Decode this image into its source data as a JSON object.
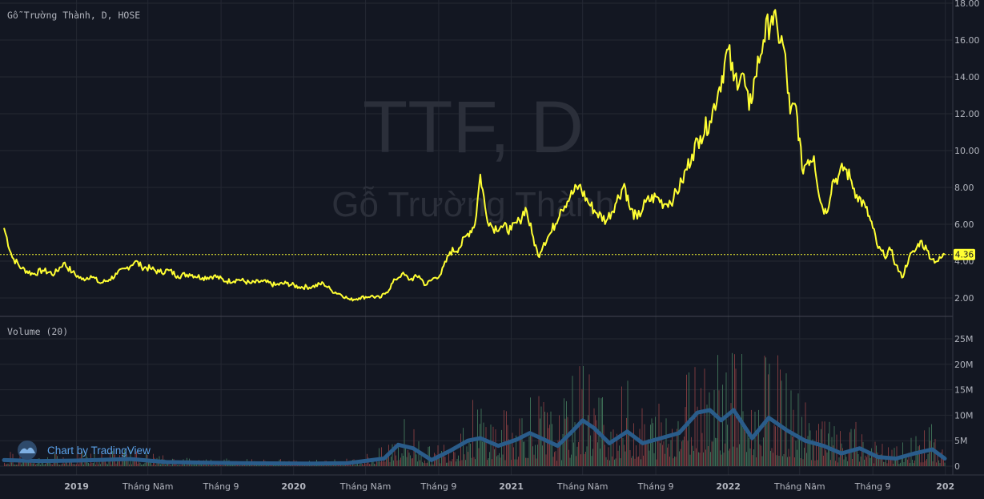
{
  "header": {
    "symbol_line": "Gỗ Trường Thành, D, HOSE",
    "volume_label": "Volume (20)"
  },
  "watermark": {
    "line1": "TTF, D",
    "line2": "Gỗ Trường Thành"
  },
  "branding": {
    "text": "Chart by TradingView"
  },
  "colors": {
    "background": "#131722",
    "price_line": "#ffff33",
    "volume_ma": "#2a5c8a",
    "vol_up": "#3c6b54",
    "vol_down": "#7a3a3e",
    "last_price_bg": "#ffff33"
  },
  "chart_data": [
    {
      "type": "line",
      "ylim": [
        0,
        18
      ],
      "price_ticks": [
        "2.00",
        "4.00",
        "6.00",
        "8.00",
        "10.00",
        "12.00",
        "14.00",
        "16.00",
        "18.00"
      ],
      "last_price": "4.36",
      "x_ticks": [
        {
          "date": "2019-01-01",
          "label": "2019"
        },
        {
          "date": "2019-05-01",
          "label": "Tháng Năm"
        },
        {
          "date": "2019-09-01",
          "label": "Tháng 9"
        },
        {
          "date": "2020-01-01",
          "label": "2020"
        },
        {
          "date": "2020-05-01",
          "label": "Tháng Năm"
        },
        {
          "date": "2020-09-01",
          "label": "Tháng 9"
        },
        {
          "date": "2021-01-01",
          "label": "2021"
        },
        {
          "date": "2021-05-01",
          "label": "Tháng Năm"
        },
        {
          "date": "2021-09-01",
          "label": "Tháng 9"
        },
        {
          "date": "2022-01-01",
          "label": "2022"
        },
        {
          "date": "2022-05-01",
          "label": "Tháng Năm"
        },
        {
          "date": "2022-09-01",
          "label": "Tháng 9"
        },
        {
          "date": "2023-01-01",
          "label": "202"
        }
      ],
      "series": [
        {
          "values": [
            [
              "2018-09-01",
              5.8
            ],
            [
              "2018-09-15",
              4.2
            ],
            [
              "2018-10-01",
              3.6
            ],
            [
              "2018-10-20",
              3.3
            ],
            [
              "2018-11-05",
              3.5
            ],
            [
              "2018-11-25",
              3.3
            ],
            [
              "2018-12-10",
              3.9
            ],
            [
              "2018-12-25",
              3.4
            ],
            [
              "2019-01-10",
              3.0
            ],
            [
              "2019-01-25",
              3.2
            ],
            [
              "2019-02-10",
              2.8
            ],
            [
              "2019-02-25",
              3.0
            ],
            [
              "2019-03-10",
              3.3
            ],
            [
              "2019-03-25",
              3.6
            ],
            [
              "2019-04-10",
              4.0
            ],
            [
              "2019-04-20",
              3.7
            ],
            [
              "2019-05-05",
              3.6
            ],
            [
              "2019-05-20",
              3.4
            ],
            [
              "2019-06-05",
              3.5
            ],
            [
              "2019-06-20",
              3.2
            ],
            [
              "2019-07-10",
              3.3
            ],
            [
              "2019-08-01",
              3.1
            ],
            [
              "2019-08-20",
              3.2
            ],
            [
              "2019-09-10",
              2.9
            ],
            [
              "2019-10-01",
              3.0
            ],
            [
              "2019-10-20",
              2.8
            ],
            [
              "2019-11-10",
              2.9
            ],
            [
              "2019-12-01",
              2.7
            ],
            [
              "2019-12-20",
              2.8
            ],
            [
              "2020-01-10",
              2.6
            ],
            [
              "2020-02-01",
              2.6
            ],
            [
              "2020-02-20",
              2.8
            ],
            [
              "2020-03-05",
              2.4
            ],
            [
              "2020-03-20",
              2.2
            ],
            [
              "2020-04-05",
              1.9
            ],
            [
              "2020-04-20",
              2.0
            ],
            [
              "2020-05-10",
              2.1
            ],
            [
              "2020-05-25",
              2.0
            ],
            [
              "2020-06-05",
              2.3
            ],
            [
              "2020-06-20",
              3.0
            ],
            [
              "2020-07-01",
              3.3
            ],
            [
              "2020-07-15",
              3.0
            ],
            [
              "2020-07-30",
              3.2
            ],
            [
              "2020-08-10",
              2.7
            ],
            [
              "2020-08-25",
              3.1
            ],
            [
              "2020-09-05",
              3.3
            ],
            [
              "2020-09-20",
              4.5
            ],
            [
              "2020-10-05",
              4.7
            ],
            [
              "2020-10-20",
              5.5
            ],
            [
              "2020-11-01",
              6.0
            ],
            [
              "2020-11-10",
              8.7
            ],
            [
              "2020-11-20",
              6.5
            ],
            [
              "2020-12-01",
              5.8
            ],
            [
              "2020-12-15",
              5.9
            ],
            [
              "2021-01-01",
              5.7
            ],
            [
              "2021-01-15",
              6.2
            ],
            [
              "2021-01-25",
              6.9
            ],
            [
              "2021-02-05",
              5.5
            ],
            [
              "2021-02-15",
              4.3
            ],
            [
              "2021-02-25",
              5.0
            ],
            [
              "2021-03-10",
              5.6
            ],
            [
              "2021-03-25",
              6.8
            ],
            [
              "2021-04-10",
              7.5
            ],
            [
              "2021-04-25",
              8.1
            ],
            [
              "2021-05-10",
              7.2
            ],
            [
              "2021-05-25",
              6.6
            ],
            [
              "2021-06-10",
              6.2
            ],
            [
              "2021-06-25",
              7.1
            ],
            [
              "2021-07-10",
              8.2
            ],
            [
              "2021-07-20",
              6.8
            ],
            [
              "2021-08-01",
              6.3
            ],
            [
              "2021-08-15",
              7.2
            ],
            [
              "2021-09-01",
              7.5
            ],
            [
              "2021-09-15",
              7.1
            ],
            [
              "2021-10-01",
              7.4
            ],
            [
              "2021-10-15",
              8.3
            ],
            [
              "2021-11-01",
              9.8
            ],
            [
              "2021-11-15",
              10.8
            ],
            [
              "2021-12-01",
              11.6
            ],
            [
              "2021-12-15",
              13.2
            ],
            [
              "2022-01-01",
              15.5
            ],
            [
              "2022-01-10",
              13.8
            ],
            [
              "2022-01-25",
              14.2
            ],
            [
              "2022-02-05",
              12.2
            ],
            [
              "2022-02-15",
              14.0
            ],
            [
              "2022-03-01",
              16.0
            ],
            [
              "2022-03-15",
              17.3
            ],
            [
              "2022-03-25",
              16.5
            ],
            [
              "2022-04-05",
              15.5
            ],
            [
              "2022-04-15",
              12.0
            ],
            [
              "2022-04-25",
              12.4
            ],
            [
              "2022-05-05",
              9.0
            ],
            [
              "2022-05-15",
              9.5
            ],
            [
              "2022-05-25",
              9.7
            ],
            [
              "2022-06-05",
              7.2
            ],
            [
              "2022-06-15",
              6.6
            ],
            [
              "2022-06-25",
              8.3
            ],
            [
              "2022-07-05",
              8.6
            ],
            [
              "2022-07-15",
              9.1
            ],
            [
              "2022-07-25",
              8.5
            ],
            [
              "2022-08-05",
              7.6
            ],
            [
              "2022-08-20",
              6.9
            ],
            [
              "2022-09-01",
              5.8
            ],
            [
              "2022-09-10",
              4.7
            ],
            [
              "2022-09-20",
              4.3
            ],
            [
              "2022-10-01",
              4.6
            ],
            [
              "2022-10-10",
              3.8
            ],
            [
              "2022-10-20",
              3.1
            ],
            [
              "2022-11-01",
              4.2
            ],
            [
              "2022-11-10",
              4.5
            ],
            [
              "2022-11-20",
              5.1
            ],
            [
              "2022-12-01",
              4.6
            ],
            [
              "2022-12-10",
              4.1
            ],
            [
              "2022-12-20",
              4.0
            ],
            [
              "2022-12-31",
              4.36
            ]
          ]
        }
      ]
    },
    {
      "type": "bar",
      "ylim": [
        0,
        28
      ],
      "unit": "M",
      "volume_ticks": [
        "0",
        "5M",
        "10M",
        "15M",
        "20M",
        "25M"
      ],
      "volume_ma_points": [
        [
          "2018-09-01",
          1.2
        ],
        [
          "2018-11-01",
          1.0
        ],
        [
          "2019-01-01",
          1.1
        ],
        [
          "2019-04-01",
          1.4
        ],
        [
          "2019-06-01",
          0.8
        ],
        [
          "2019-10-01",
          0.6
        ],
        [
          "2020-02-01",
          0.5
        ],
        [
          "2020-04-01",
          0.6
        ],
        [
          "2020-06-01",
          1.5
        ],
        [
          "2020-06-25",
          4.2
        ],
        [
          "2020-07-20",
          3.5
        ],
        [
          "2020-08-20",
          1.2
        ],
        [
          "2020-09-20",
          3.0
        ],
        [
          "2020-10-20",
          5.0
        ],
        [
          "2020-11-10",
          5.5
        ],
        [
          "2020-12-10",
          4.0
        ],
        [
          "2021-01-10",
          5.2
        ],
        [
          "2021-02-01",
          6.5
        ],
        [
          "2021-02-20",
          5.5
        ],
        [
          "2021-03-20",
          4.0
        ],
        [
          "2021-04-15",
          7.0
        ],
        [
          "2021-05-01",
          9.0
        ],
        [
          "2021-05-20",
          7.5
        ],
        [
          "2021-06-15",
          4.5
        ],
        [
          "2021-07-15",
          6.8
        ],
        [
          "2021-08-10",
          4.5
        ],
        [
          "2021-09-10",
          5.5
        ],
        [
          "2021-10-10",
          6.5
        ],
        [
          "2021-11-10",
          10.5
        ],
        [
          "2021-12-01",
          11.0
        ],
        [
          "2021-12-20",
          9.0
        ],
        [
          "2022-01-10",
          11.0
        ],
        [
          "2022-02-10",
          5.5
        ],
        [
          "2022-03-10",
          9.5
        ],
        [
          "2022-04-10",
          7.0
        ],
        [
          "2022-05-10",
          5.0
        ],
        [
          "2022-06-10",
          4.0
        ],
        [
          "2022-07-10",
          2.5
        ],
        [
          "2022-08-10",
          3.5
        ],
        [
          "2022-09-10",
          1.8
        ],
        [
          "2022-10-10",
          1.5
        ],
        [
          "2022-11-10",
          2.5
        ],
        [
          "2022-12-10",
          3.3
        ],
        [
          "2022-12-31",
          1.5
        ]
      ]
    }
  ]
}
